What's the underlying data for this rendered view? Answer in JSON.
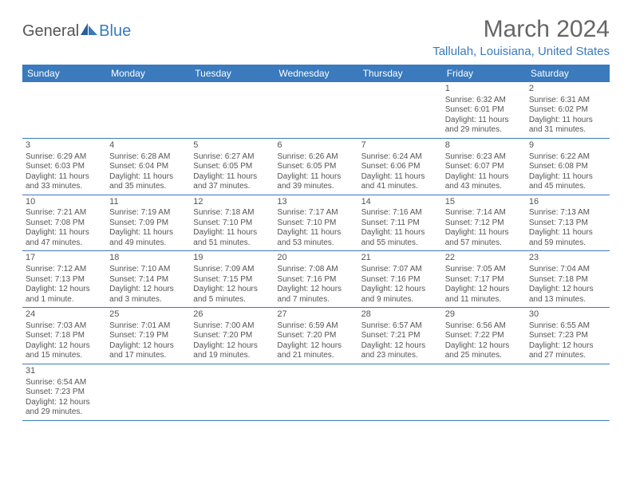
{
  "logo": {
    "text1": "General",
    "text2": "Blue"
  },
  "title": "March 2024",
  "location": "Tallulah, Louisiana, United States",
  "colors": {
    "header_bg": "#3a7abd",
    "header_fg": "#ffffff",
    "accent": "#3a7abd",
    "text": "#555555",
    "background": "#ffffff"
  },
  "typography": {
    "title_fontsize": 30,
    "location_fontsize": 15,
    "header_fontsize": 12,
    "cell_fontsize": 10,
    "daynum_fontsize": 11
  },
  "days_of_week": [
    "Sunday",
    "Monday",
    "Tuesday",
    "Wednesday",
    "Thursday",
    "Friday",
    "Saturday"
  ],
  "weeks": [
    [
      null,
      null,
      null,
      null,
      null,
      {
        "n": "1",
        "sunrise": "6:32 AM",
        "sunset": "6:01 PM",
        "dl1": "Daylight: 11 hours",
        "dl2": "and 29 minutes."
      },
      {
        "n": "2",
        "sunrise": "6:31 AM",
        "sunset": "6:02 PM",
        "dl1": "Daylight: 11 hours",
        "dl2": "and 31 minutes."
      }
    ],
    [
      {
        "n": "3",
        "sunrise": "6:29 AM",
        "sunset": "6:03 PM",
        "dl1": "Daylight: 11 hours",
        "dl2": "and 33 minutes."
      },
      {
        "n": "4",
        "sunrise": "6:28 AM",
        "sunset": "6:04 PM",
        "dl1": "Daylight: 11 hours",
        "dl2": "and 35 minutes."
      },
      {
        "n": "5",
        "sunrise": "6:27 AM",
        "sunset": "6:05 PM",
        "dl1": "Daylight: 11 hours",
        "dl2": "and 37 minutes."
      },
      {
        "n": "6",
        "sunrise": "6:26 AM",
        "sunset": "6:05 PM",
        "dl1": "Daylight: 11 hours",
        "dl2": "and 39 minutes."
      },
      {
        "n": "7",
        "sunrise": "6:24 AM",
        "sunset": "6:06 PM",
        "dl1": "Daylight: 11 hours",
        "dl2": "and 41 minutes."
      },
      {
        "n": "8",
        "sunrise": "6:23 AM",
        "sunset": "6:07 PM",
        "dl1": "Daylight: 11 hours",
        "dl2": "and 43 minutes."
      },
      {
        "n": "9",
        "sunrise": "6:22 AM",
        "sunset": "6:08 PM",
        "dl1": "Daylight: 11 hours",
        "dl2": "and 45 minutes."
      }
    ],
    [
      {
        "n": "10",
        "sunrise": "7:21 AM",
        "sunset": "7:08 PM",
        "dl1": "Daylight: 11 hours",
        "dl2": "and 47 minutes."
      },
      {
        "n": "11",
        "sunrise": "7:19 AM",
        "sunset": "7:09 PM",
        "dl1": "Daylight: 11 hours",
        "dl2": "and 49 minutes."
      },
      {
        "n": "12",
        "sunrise": "7:18 AM",
        "sunset": "7:10 PM",
        "dl1": "Daylight: 11 hours",
        "dl2": "and 51 minutes."
      },
      {
        "n": "13",
        "sunrise": "7:17 AM",
        "sunset": "7:10 PM",
        "dl1": "Daylight: 11 hours",
        "dl2": "and 53 minutes."
      },
      {
        "n": "14",
        "sunrise": "7:16 AM",
        "sunset": "7:11 PM",
        "dl1": "Daylight: 11 hours",
        "dl2": "and 55 minutes."
      },
      {
        "n": "15",
        "sunrise": "7:14 AM",
        "sunset": "7:12 PM",
        "dl1": "Daylight: 11 hours",
        "dl2": "and 57 minutes."
      },
      {
        "n": "16",
        "sunrise": "7:13 AM",
        "sunset": "7:13 PM",
        "dl1": "Daylight: 11 hours",
        "dl2": "and 59 minutes."
      }
    ],
    [
      {
        "n": "17",
        "sunrise": "7:12 AM",
        "sunset": "7:13 PM",
        "dl1": "Daylight: 12 hours",
        "dl2": "and 1 minute."
      },
      {
        "n": "18",
        "sunrise": "7:10 AM",
        "sunset": "7:14 PM",
        "dl1": "Daylight: 12 hours",
        "dl2": "and 3 minutes."
      },
      {
        "n": "19",
        "sunrise": "7:09 AM",
        "sunset": "7:15 PM",
        "dl1": "Daylight: 12 hours",
        "dl2": "and 5 minutes."
      },
      {
        "n": "20",
        "sunrise": "7:08 AM",
        "sunset": "7:16 PM",
        "dl1": "Daylight: 12 hours",
        "dl2": "and 7 minutes."
      },
      {
        "n": "21",
        "sunrise": "7:07 AM",
        "sunset": "7:16 PM",
        "dl1": "Daylight: 12 hours",
        "dl2": "and 9 minutes."
      },
      {
        "n": "22",
        "sunrise": "7:05 AM",
        "sunset": "7:17 PM",
        "dl1": "Daylight: 12 hours",
        "dl2": "and 11 minutes."
      },
      {
        "n": "23",
        "sunrise": "7:04 AM",
        "sunset": "7:18 PM",
        "dl1": "Daylight: 12 hours",
        "dl2": "and 13 minutes."
      }
    ],
    [
      {
        "n": "24",
        "sunrise": "7:03 AM",
        "sunset": "7:18 PM",
        "dl1": "Daylight: 12 hours",
        "dl2": "and 15 minutes."
      },
      {
        "n": "25",
        "sunrise": "7:01 AM",
        "sunset": "7:19 PM",
        "dl1": "Daylight: 12 hours",
        "dl2": "and 17 minutes."
      },
      {
        "n": "26",
        "sunrise": "7:00 AM",
        "sunset": "7:20 PM",
        "dl1": "Daylight: 12 hours",
        "dl2": "and 19 minutes."
      },
      {
        "n": "27",
        "sunrise": "6:59 AM",
        "sunset": "7:20 PM",
        "dl1": "Daylight: 12 hours",
        "dl2": "and 21 minutes."
      },
      {
        "n": "28",
        "sunrise": "6:57 AM",
        "sunset": "7:21 PM",
        "dl1": "Daylight: 12 hours",
        "dl2": "and 23 minutes."
      },
      {
        "n": "29",
        "sunrise": "6:56 AM",
        "sunset": "7:22 PM",
        "dl1": "Daylight: 12 hours",
        "dl2": "and 25 minutes."
      },
      {
        "n": "30",
        "sunrise": "6:55 AM",
        "sunset": "7:23 PM",
        "dl1": "Daylight: 12 hours",
        "dl2": "and 27 minutes."
      }
    ],
    [
      {
        "n": "31",
        "sunrise": "6:54 AM",
        "sunset": "7:23 PM",
        "dl1": "Daylight: 12 hours",
        "dl2": "and 29 minutes."
      },
      null,
      null,
      null,
      null,
      null,
      null
    ]
  ],
  "labels": {
    "sunrise_prefix": "Sunrise: ",
    "sunset_prefix": "Sunset: "
  }
}
